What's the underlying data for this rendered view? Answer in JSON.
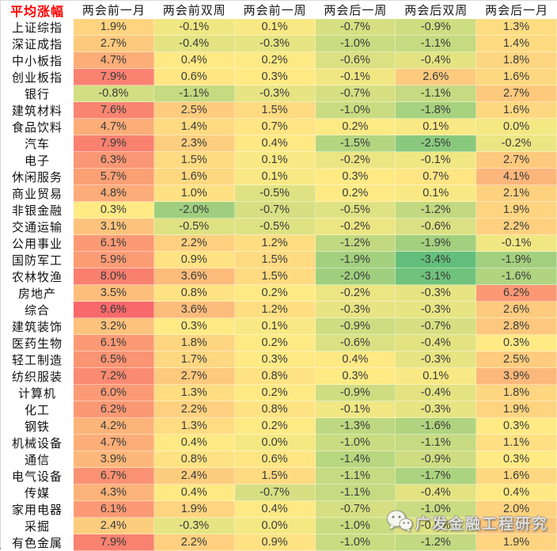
{
  "chart_data": {
    "type": "heatmap",
    "corner_label": "平均涨幅",
    "columns": [
      "两会前一月",
      "两会前双周",
      "两会前一周",
      "两会后一周",
      "两会后双周",
      "两会后一月"
    ],
    "rows": [
      {
        "label": "上证综指",
        "values": [
          1.9,
          -0.1,
          0.1,
          -0.7,
          -0.9,
          1.3
        ]
      },
      {
        "label": "深证成指",
        "values": [
          2.7,
          -0.4,
          -0.3,
          -1.0,
          -1.1,
          1.4
        ]
      },
      {
        "label": "中小板指",
        "values": [
          4.7,
          0.4,
          0.2,
          -0.6,
          -0.4,
          1.8
        ]
      },
      {
        "label": "创业板指",
        "values": [
          7.9,
          0.6,
          0.3,
          -0.1,
          2.6,
          1.6
        ]
      },
      {
        "label": "银行",
        "values": [
          -0.8,
          -1.1,
          -0.3,
          -0.7,
          -1.1,
          2.7
        ]
      },
      {
        "label": "建筑材料",
        "values": [
          7.6,
          2.5,
          1.5,
          -1.0,
          -1.8,
          1.6
        ]
      },
      {
        "label": "食品饮料",
        "values": [
          4.7,
          1.4,
          0.7,
          0.2,
          0.1,
          0.0
        ]
      },
      {
        "label": "汽车",
        "values": [
          7.9,
          2.3,
          0.4,
          -1.5,
          -2.5,
          -0.2
        ]
      },
      {
        "label": "电子",
        "values": [
          6.3,
          1.5,
          0.1,
          -0.2,
          -0.1,
          2.7
        ]
      },
      {
        "label": "休闲服务",
        "values": [
          5.7,
          1.6,
          0.1,
          0.3,
          0.7,
          4.1
        ]
      },
      {
        "label": "商业贸易",
        "values": [
          4.8,
          1.0,
          -0.5,
          0.2,
          0.1,
          2.1
        ]
      },
      {
        "label": "非银金融",
        "values": [
          0.3,
          -2.0,
          -0.7,
          -0.5,
          -1.2,
          1.9
        ]
      },
      {
        "label": "交通运输",
        "values": [
          3.1,
          -0.5,
          -0.5,
          -0.2,
          -0.6,
          2.2
        ]
      },
      {
        "label": "公用事业",
        "values": [
          6.1,
          2.2,
          1.2,
          -1.2,
          -1.9,
          -0.1
        ]
      },
      {
        "label": "国防军工",
        "values": [
          5.9,
          0.9,
          1.5,
          -1.9,
          -3.4,
          -1.9
        ]
      },
      {
        "label": "农林牧渔",
        "values": [
          8.0,
          3.6,
          1.5,
          -2.0,
          -3.1,
          -1.6
        ]
      },
      {
        "label": "房地产",
        "values": [
          3.5,
          0.8,
          0.2,
          -0.2,
          -0.3,
          6.2
        ]
      },
      {
        "label": "综合",
        "values": [
          9.6,
          3.6,
          1.2,
          -0.3,
          -0.3,
          2.6
        ]
      },
      {
        "label": "建筑装饰",
        "values": [
          3.2,
          0.3,
          0.1,
          -0.9,
          -0.7,
          2.8
        ]
      },
      {
        "label": "医药生物",
        "values": [
          6.1,
          1.8,
          0.2,
          -0.6,
          -0.4,
          0.3
        ]
      },
      {
        "label": "轻工制造",
        "values": [
          6.5,
          1.7,
          0.3,
          0.4,
          -0.3,
          2.5
        ]
      },
      {
        "label": "纺织服装",
        "values": [
          7.2,
          2.7,
          0.8,
          0.3,
          0.1,
          3.9
        ]
      },
      {
        "label": "计算机",
        "values": [
          6.0,
          1.3,
          0.2,
          -0.9,
          -0.4,
          1.8
        ]
      },
      {
        "label": "化工",
        "values": [
          6.2,
          2.2,
          0.8,
          -0.1,
          -0.3,
          1.9
        ]
      },
      {
        "label": "钢铁",
        "values": [
          4.2,
          1.3,
          0.2,
          -1.3,
          -1.6,
          0.3
        ]
      },
      {
        "label": "机械设备",
        "values": [
          4.7,
          0.4,
          0.0,
          -1.0,
          -1.1,
          1.1
        ]
      },
      {
        "label": "通信",
        "values": [
          3.9,
          0.8,
          0.6,
          -1.4,
          -0.9,
          0.3
        ]
      },
      {
        "label": "电气设备",
        "values": [
          6.7,
          2.4,
          1.5,
          -1.1,
          -1.7,
          1.6
        ]
      },
      {
        "label": "传媒",
        "values": [
          4.3,
          0.4,
          -0.7,
          -1.1,
          -0.4,
          0.4
        ]
      },
      {
        "label": "家用电器",
        "values": [
          6.1,
          1.9,
          0.4,
          -0.7,
          -1.0,
          2.0
        ]
      },
      {
        "label": "采掘",
        "values": [
          2.4,
          -0.3,
          0.0,
          -1.0,
          -0.5,
          null
        ]
      },
      {
        "label": "有色金属",
        "values": [
          7.9,
          2.2,
          0.9,
          -1.0,
          -1.2,
          1.9
        ]
      }
    ],
    "value_format": "one-decimal-percent",
    "color_scale": {
      "domain": [
        -3.4,
        0.25,
        9.6
      ],
      "colors": [
        "#63BE7B",
        "#FFEB84",
        "#F8696B"
      ],
      "legend": "green = lowest return, yellow = mid, red = highest return"
    },
    "obscured_cell_color": "#FBC87C"
  },
  "styles": {
    "corner_label_color": "#FE0000",
    "bottom_border_color": "#595959"
  },
  "watermark": {
    "text": "广发金融工程研究",
    "icon": "wechat-icon"
  }
}
